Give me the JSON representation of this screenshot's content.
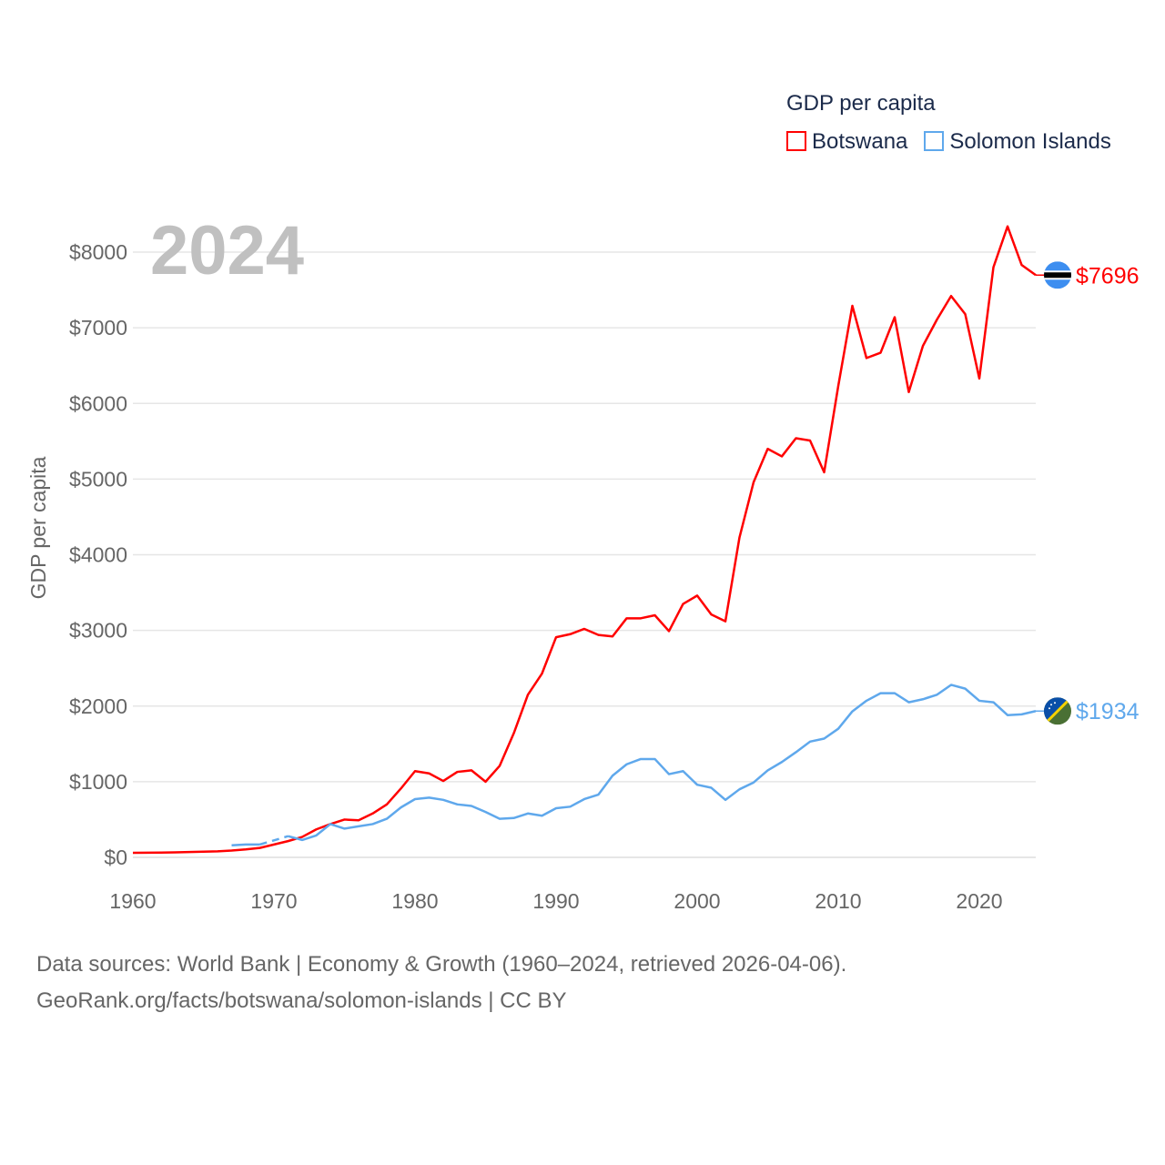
{
  "year_label": "2024",
  "legend": {
    "title": "GDP per capita",
    "items": [
      {
        "name": "Botswana",
        "color": "#ff0000"
      },
      {
        "name": "Solomon Islands",
        "color": "#5fa8ec"
      }
    ]
  },
  "source_line1": "Data sources: World Bank | Economy & Growth (1960–2024, retrieved 2026-04-06).",
  "source_line2": "GeoRank.org/facts/botswana/solomon-islands | CC BY",
  "chart_data": {
    "type": "line",
    "title": "GDP per capita",
    "xlabel": "",
    "ylabel": "GDP per capita",
    "xlim": [
      1960,
      2024
    ],
    "ylim": [
      0,
      8000
    ],
    "x_ticks": [
      "1960",
      "1970",
      "1980",
      "1990",
      "2000",
      "2010",
      "2020"
    ],
    "y_ticks": [
      "$0",
      "$1000",
      "$2000",
      "$3000",
      "$4000",
      "$5000",
      "$6000",
      "$7000",
      "$8000"
    ],
    "grid": true,
    "legend_position": "top-right",
    "start_year": 1960,
    "series": [
      {
        "name": "Botswana",
        "color": "#ff0000",
        "end_label": "$7696",
        "values": [
          60,
          61,
          63,
          66,
          70,
          75,
          80,
          90,
          105,
          125,
          170,
          215,
          270,
          370,
          440,
          500,
          490,
          580,
          700,
          910,
          1140,
          1110,
          1010,
          1130,
          1150,
          1000,
          1210,
          1640,
          2150,
          2430,
          2910,
          2950,
          3020,
          2940,
          2920,
          3160,
          3160,
          3200,
          2990,
          3350,
          3460,
          3210,
          3120,
          4230,
          4960,
          5400,
          5300,
          5540,
          5510,
          5090,
          6230,
          7290,
          6600,
          6670,
          7140,
          6150,
          6760,
          7110,
          7420,
          7180,
          6330,
          7800,
          8340,
          7830,
          7696
        ]
      },
      {
        "name": "Solomon Islands",
        "color": "#5fa8ec",
        "end_label": "$1934",
        "values": [
          null,
          null,
          null,
          null,
          null,
          null,
          null,
          160,
          170,
          170,
          null,
          280,
          230,
          290,
          440,
          380,
          410,
          440,
          510,
          660,
          770,
          790,
          760,
          700,
          680,
          600,
          510,
          520,
          580,
          550,
          650,
          670,
          770,
          830,
          1080,
          1230,
          1300,
          1300,
          1100,
          1140,
          960,
          920,
          760,
          900,
          990,
          1150,
          1260,
          1390,
          1530,
          1570,
          1700,
          1930,
          2070,
          2170,
          2170,
          2050,
          2090,
          2150,
          2280,
          2230,
          2070,
          2050,
          1880,
          1890,
          1934
        ]
      }
    ]
  }
}
